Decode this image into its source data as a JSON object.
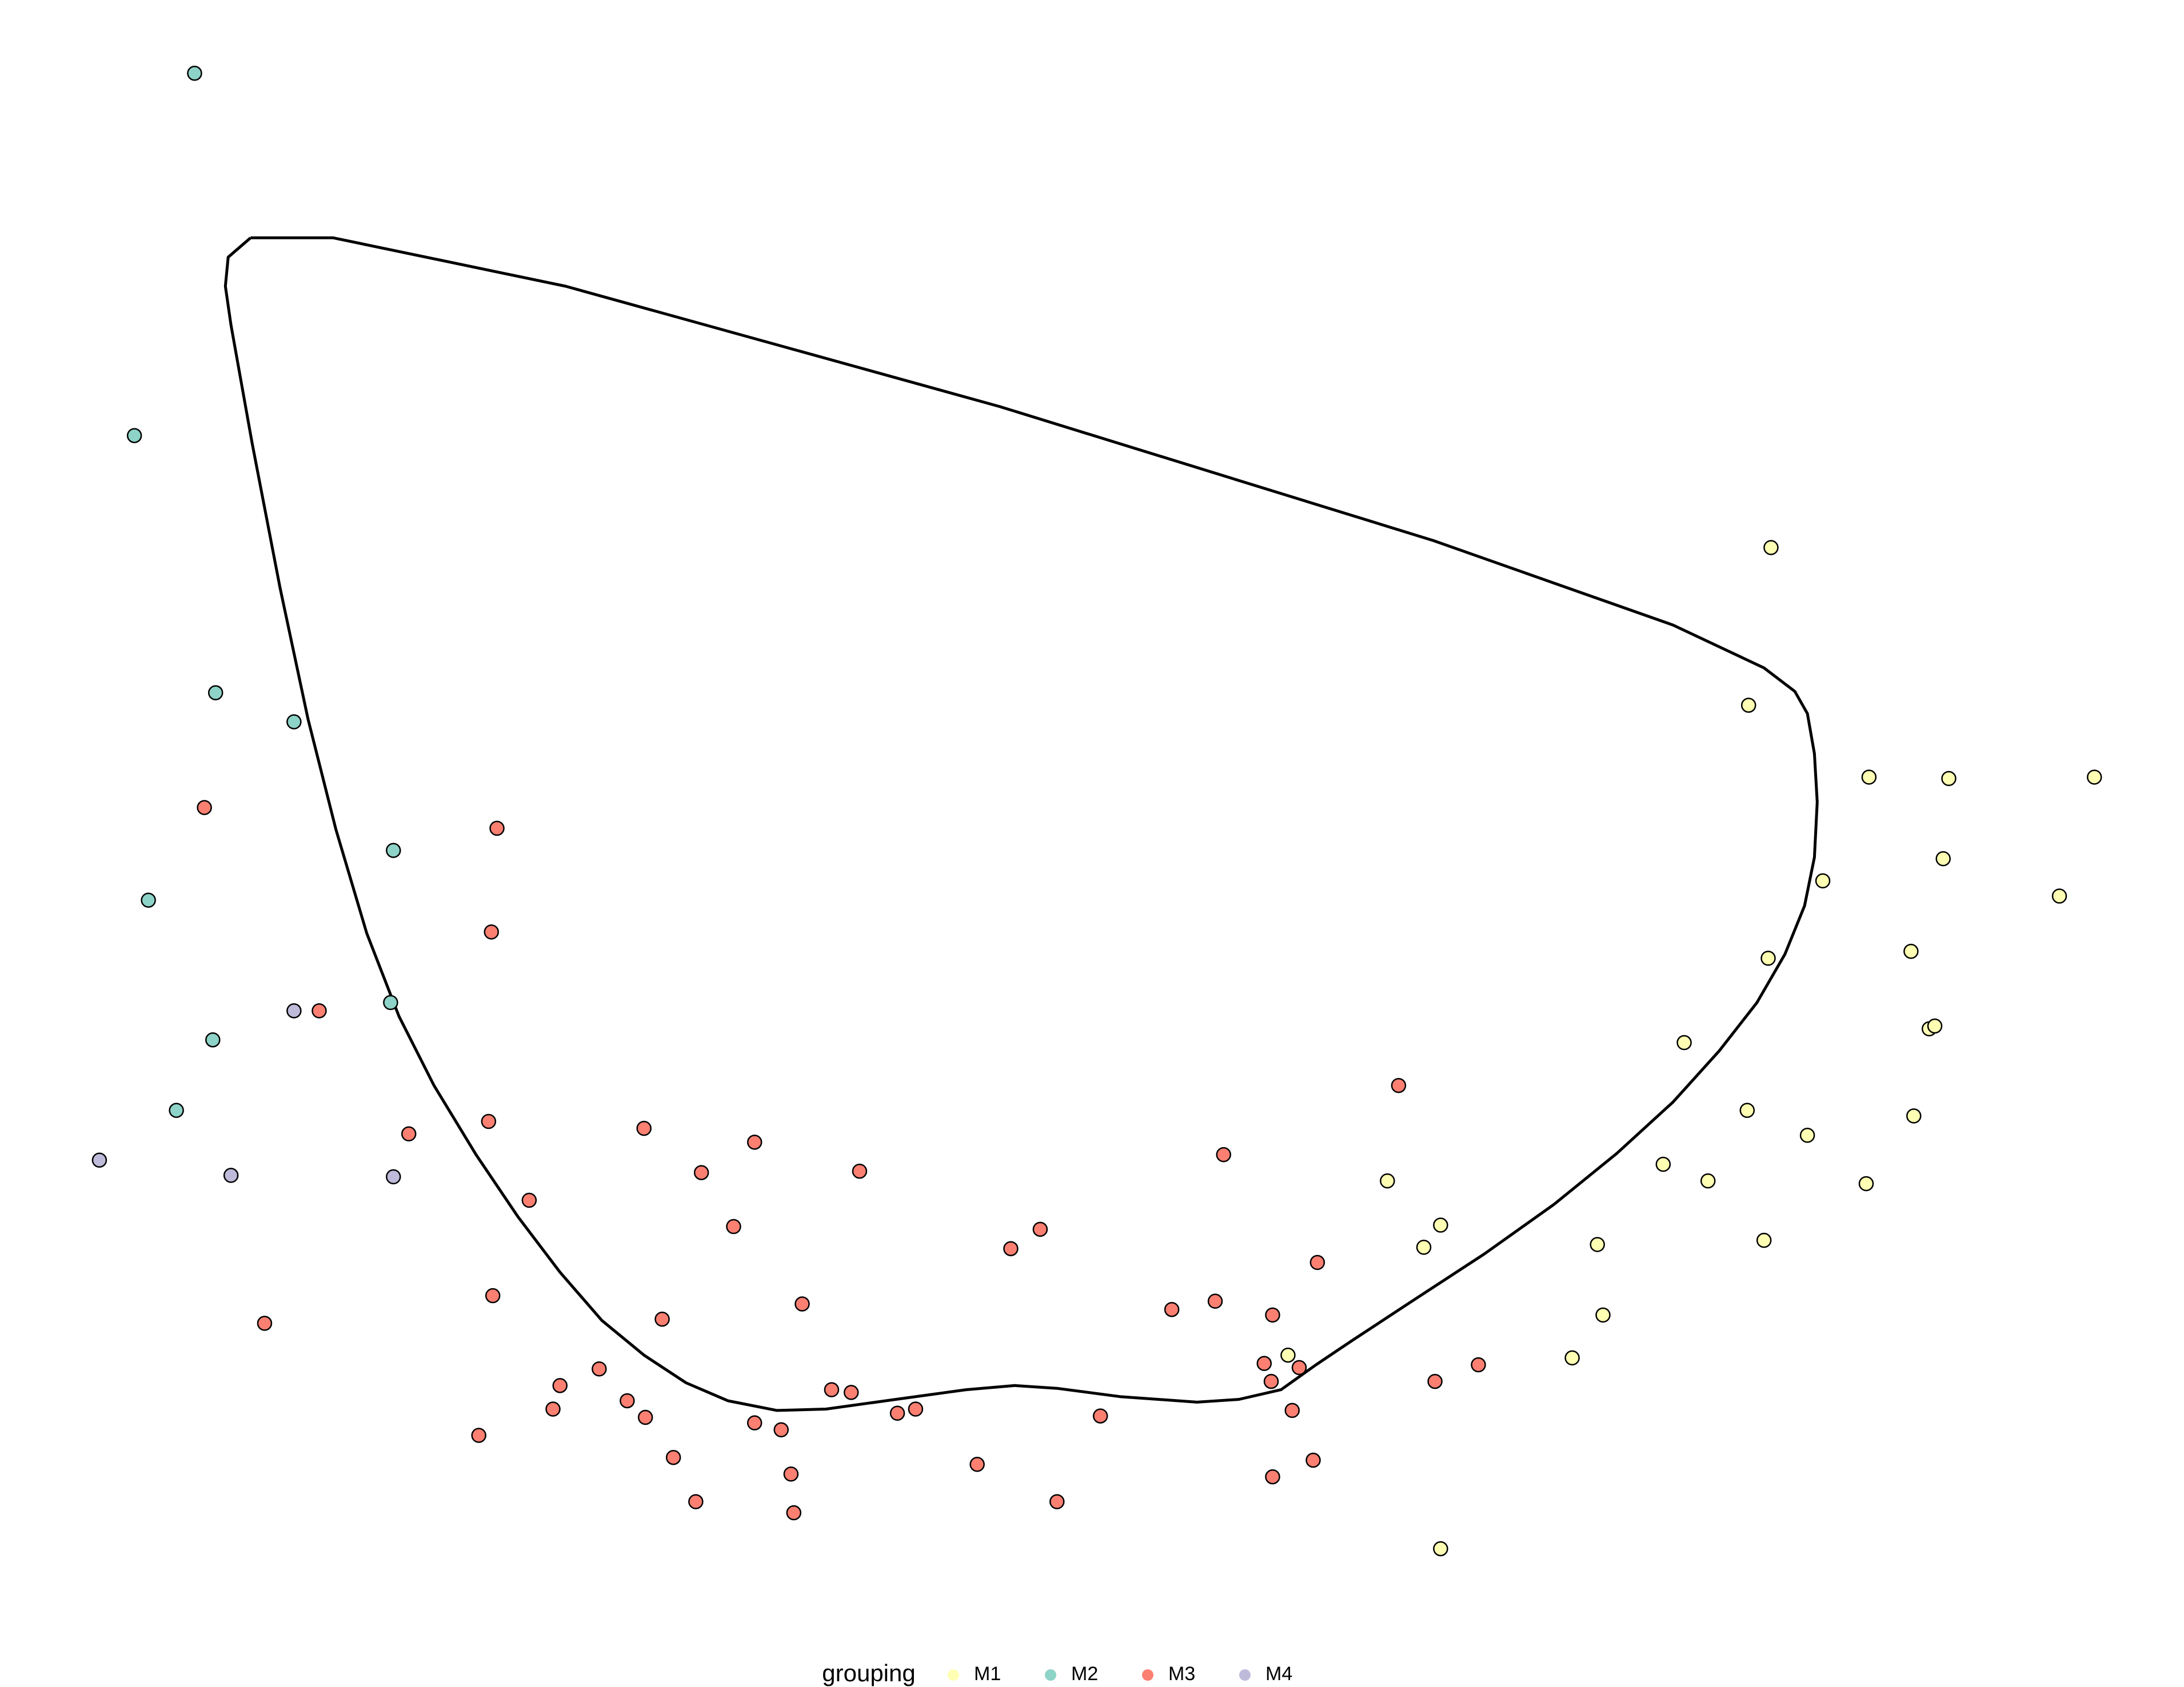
{
  "chart_data": {
    "type": "scatter",
    "xlim": [
      0,
      1560
    ],
    "ylim": [
      1220,
      0
    ],
    "legend_title": "grouping",
    "legend_position": "bottom",
    "outline": {
      "color": "#000000",
      "x": [
        179,
        238,
        404,
        714,
        1024,
        1195,
        1260,
        1282,
        1291,
        1296,
        1298,
        1296,
        1289,
        1275,
        1255,
        1228,
        1195,
        1155,
        1110,
        1060,
        1010,
        965,
        940,
        915,
        885,
        855,
        800,
        755,
        725,
        690,
        640,
        590,
        555,
        520,
        490,
        460,
        430,
        400,
        370,
        340,
        310,
        285,
        262,
        240,
        220,
        200,
        180,
        165,
        161,
        163,
        179
      ],
      "y": [
        172,
        172,
        207,
        294,
        391,
        452,
        483,
        500,
        516,
        545,
        580,
        620,
        655,
        690,
        725,
        760,
        797,
        834,
        871,
        907,
        940,
        970,
        987,
        1005,
        1012,
        1014,
        1010,
        1004,
        1002,
        1005,
        1012,
        1019,
        1020,
        1013,
        1000,
        980,
        955,
        920,
        880,
        835,
        785,
        735,
        675,
        600,
        520,
        425,
        320,
        235,
        207,
        186,
        172
      ]
    },
    "series": [
      {
        "name": "M1",
        "color": "#ffffb3",
        "x": [
          1265,
          1249,
          1335,
          1392,
          1496,
          1302,
          1388,
          1471,
          1263,
          1365,
          1203,
          1378,
          1382,
          1248,
          1291,
          1367,
          991,
          1188,
          1220,
          1333,
          1029,
          1017,
          1141,
          1260,
          1145,
          920,
          1123,
          1029
        ],
        "values": [
          396,
          510,
          562,
          563,
          562,
          637,
          621,
          648,
          693,
          688,
          754,
          744,
          742,
          803,
          821,
          807,
          854,
          842,
          854,
          856,
          886,
          902,
          900,
          897,
          951,
          980,
          982,
          1120
        ]
      },
      {
        "name": "M2",
        "color": "#8dd3c7",
        "x": [
          139,
          96,
          154,
          210,
          281,
          106,
          279,
          152,
          126
        ],
        "values": [
          53,
          315,
          501,
          522,
          615,
          651,
          725,
          752,
          803
        ]
      },
      {
        "name": "M3",
        "color": "#fb8072",
        "x": [
          146,
          355,
          351,
          228,
          292,
          349,
          460,
          539,
          501,
          614,
          378,
          999,
          874,
          524,
          743,
          722,
          941,
          352,
          573,
          837,
          868,
          909,
          473,
          189,
          903,
          928,
          908,
          1025,
          1056,
          400,
          428,
          594,
          608,
          448,
          395,
          461,
          641,
          654,
          786,
          923,
          539,
          558,
          342,
          481,
          698,
          938,
          565,
          909,
          497,
          755,
          567
        ],
        "values": [
          584,
          599,
          674,
          731,
          820,
          811,
          816,
          826,
          848,
          847,
          868,
          785,
          835,
          887,
          889,
          903,
          913,
          937,
          943,
          947,
          941,
          951,
          954,
          957,
          986,
          989,
          999,
          999,
          987,
          1002,
          990,
          1005,
          1007,
          1013,
          1019,
          1025,
          1022,
          1019,
          1024,
          1020,
          1029,
          1034,
          1038,
          1054,
          1059,
          1056,
          1066,
          1068,
          1086,
          1086,
          1094
        ]
      },
      {
        "name": "M4",
        "color": "#bebada",
        "x": [
          210,
          71,
          165,
          281
        ],
        "values": [
          731,
          839,
          850,
          851
        ]
      }
    ]
  }
}
